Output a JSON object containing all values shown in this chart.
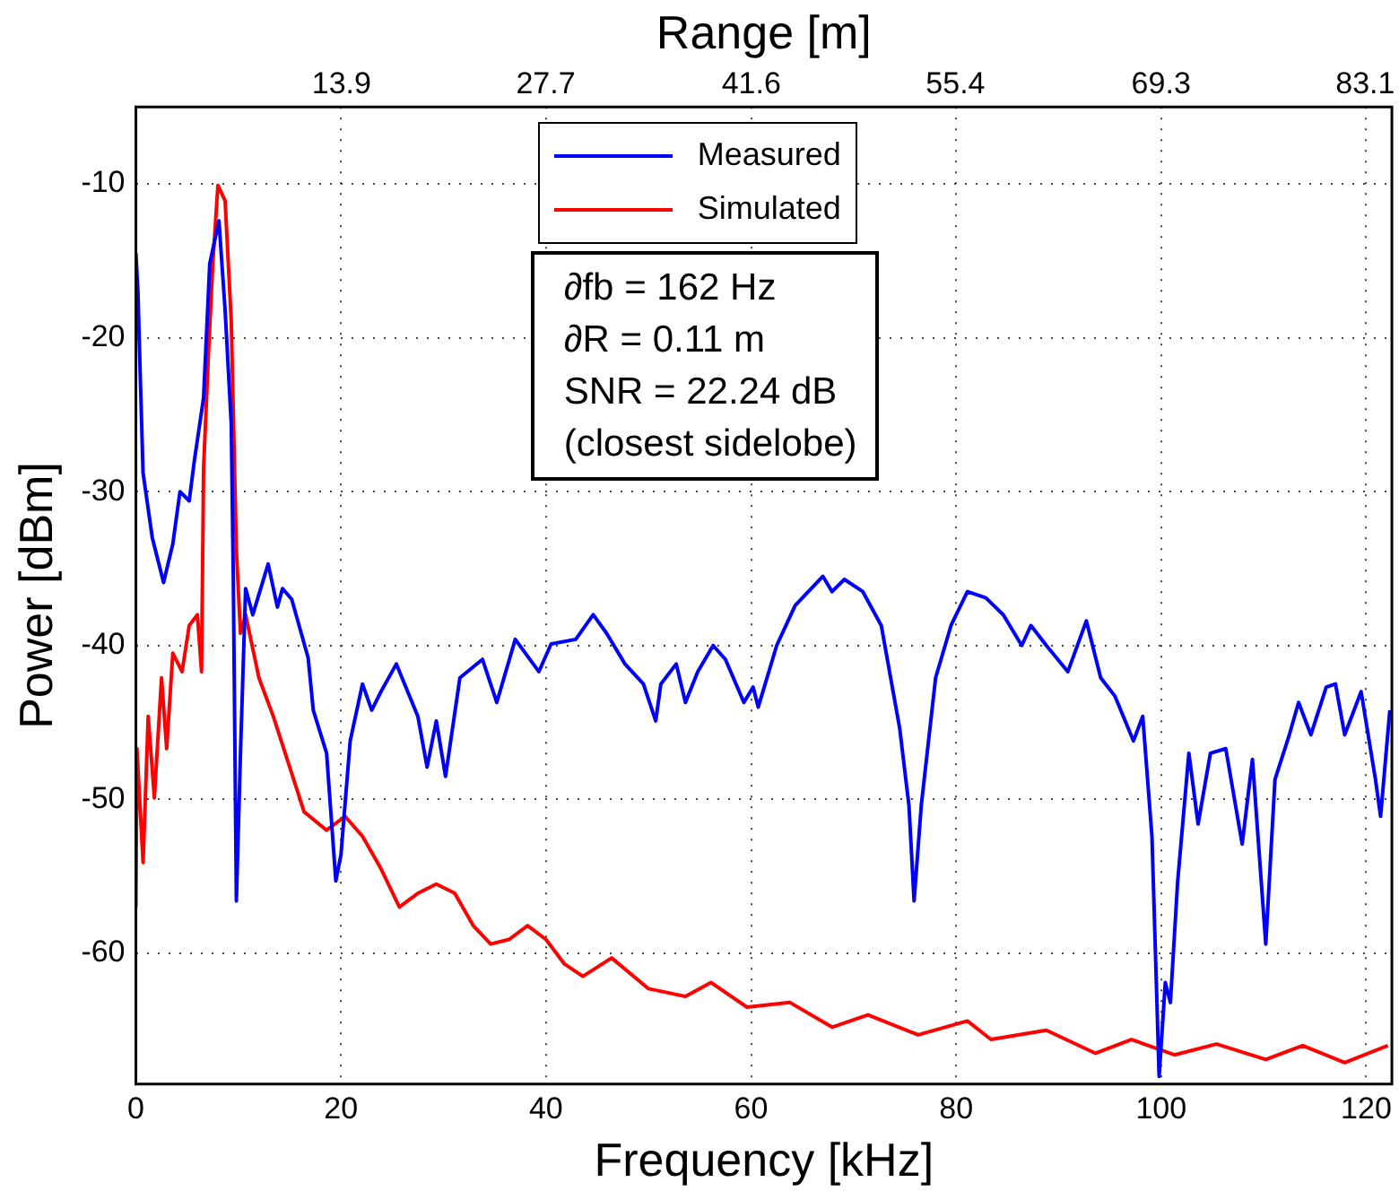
{
  "chart_data": {
    "type": "line",
    "xlabel": "Frequency [kHz]",
    "ylabel": "Power [dBm]",
    "x2label": "Range [m]",
    "xlim": [
      0,
      122.5
    ],
    "xticks": [
      0,
      20,
      40,
      60,
      80,
      100,
      120
    ],
    "x2lim": [
      0,
      84.9
    ],
    "x2ticks": [
      13.9,
      27.7,
      41.6,
      55.4,
      69.3,
      83.1
    ],
    "ylim": [
      -68.5,
      -5
    ],
    "yticks": [
      -60,
      -50,
      -40,
      -30,
      -20,
      -10
    ],
    "grid": true,
    "legend": "top",
    "line_style": "solid",
    "marker": "none",
    "annotations": [
      "∂fb = 162 Hz",
      "∂R = 0.11 m",
      "SNR = 22.24 dB",
      "(closest sidelobe)"
    ],
    "series": [
      {
        "name": "Measured",
        "color": "#0000ff",
        "x": [
          0,
          0.2,
          0.4,
          0.7,
          1.6,
          2.7,
          3.6,
          4.3,
          5.2,
          5.7,
          6.6,
          7.2,
          8.1,
          8.7,
          9.3,
          9.5,
          9.8,
          10.2,
          10.7,
          11.4,
          12.9,
          13.8,
          14.3,
          15.2,
          16.8,
          17.3,
          18.6,
          19.5,
          20,
          20.9,
          22.1,
          23,
          23.9,
          25.4,
          27.5,
          28.4,
          29.3,
          30.2,
          31.6,
          33.8,
          35.2,
          37,
          39.3,
          40.5,
          42.9,
          44.6,
          45.9,
          47.7,
          49.5,
          50.7,
          51.2,
          52.7,
          53.6,
          54.8,
          56.3,
          57.5,
          59.3,
          60.2,
          60.7,
          62.5,
          64.3,
          67,
          67.9,
          69.1,
          70.9,
          72.7,
          74.5,
          75.4,
          75.9,
          76.6,
          78,
          79.5,
          81.1,
          82.9,
          84.6,
          86.4,
          87.3,
          88.8,
          90.9,
          92.7,
          94.1,
          95.5,
          97.3,
          98.2,
          99.1,
          99.8,
          100.4,
          100.9,
          101.6,
          102.7,
          103.6,
          104.8,
          106.3,
          107.9,
          108.9,
          110.2,
          111.1,
          112.5,
          113.4,
          114.6,
          116.1,
          117,
          117.9,
          119.5,
          120.9,
          121.4,
          122.3
        ],
        "values": [
          -14.5,
          -17,
          -21.9,
          -28.8,
          -33,
          -35.9,
          -33.4,
          -30,
          -30.6,
          -28,
          -23.9,
          -15.2,
          -12.4,
          -18.2,
          -25.6,
          -35.5,
          -56.6,
          -47,
          -36.3,
          -38,
          -34.7,
          -37.5,
          -36.3,
          -37,
          -40.8,
          -44.2,
          -47,
          -55.3,
          -53.6,
          -46.2,
          -42.5,
          -44.2,
          -43,
          -41.2,
          -44.6,
          -47.9,
          -44.9,
          -48.5,
          -42.1,
          -40.9,
          -43.7,
          -39.6,
          -41.7,
          -39.9,
          -39.6,
          -38,
          -39.2,
          -41.2,
          -42.5,
          -44.9,
          -42.5,
          -41.2,
          -43.7,
          -41.7,
          -40,
          -40.9,
          -43.7,
          -42.7,
          -44,
          -40,
          -37.4,
          -35.5,
          -36.5,
          -35.7,
          -36.5,
          -38.7,
          -45.4,
          -50.4,
          -56.6,
          -50.4,
          -42.1,
          -38.7,
          -36.5,
          -36.9,
          -38,
          -40,
          -38.7,
          -40,
          -41.7,
          -38.4,
          -42.1,
          -43.3,
          -46.2,
          -44.6,
          -52.4,
          -68,
          -61.9,
          -63.2,
          -55.4,
          -47,
          -51.6,
          -47,
          -46.7,
          -52.9,
          -47.4,
          -59.4,
          -48.7,
          -45.8,
          -43.7,
          -45.8,
          -42.7,
          -42.5,
          -45.8,
          -43,
          -48.7,
          -51.1,
          -44.2
        ]
      },
      {
        "name": "Simulated",
        "color": "#ff0000",
        "x": [
          0,
          0.1,
          0.7,
          1.2,
          1.8,
          2.5,
          3,
          3.6,
          4.5,
          5.2,
          6,
          6.4,
          6.6,
          7.1,
          7.5,
          8,
          8.7,
          9.3,
          9.8,
          10.2,
          10.7,
          12,
          13.4,
          15,
          16.4,
          18.6,
          20.4,
          22.1,
          23.9,
          25.7,
          27.5,
          29.3,
          31.1,
          32.9,
          34.6,
          36.4,
          38.2,
          40,
          41.8,
          43.6,
          46.4,
          50,
          53.6,
          56.1,
          59.6,
          63.8,
          67.9,
          71.4,
          76.3,
          81.1,
          83.4,
          88.8,
          93.6,
          97.1,
          101.3,
          105.4,
          110.2,
          113.8,
          117.9,
          122.1
        ],
        "values": [
          -57,
          -46.7,
          -54.1,
          -44.6,
          -49.9,
          -42.1,
          -46.7,
          -40.5,
          -41.7,
          -38.7,
          -38,
          -41.7,
          -28.5,
          -20.7,
          -15.2,
          -10.1,
          -11.1,
          -18.9,
          -33.8,
          -39.2,
          -38,
          -42.1,
          -44.6,
          -47.9,
          -50.8,
          -52,
          -51.1,
          -52.4,
          -54.5,
          -57,
          -56.1,
          -55.5,
          -56.1,
          -58.2,
          -59.4,
          -59.1,
          -58.2,
          -59.1,
          -60.7,
          -61.5,
          -60.3,
          -62.3,
          -62.8,
          -61.9,
          -63.5,
          -63.2,
          -64.8,
          -64,
          -65.3,
          -64.4,
          -65.6,
          -65,
          -66.5,
          -65.6,
          -66.6,
          -65.9,
          -66.9,
          -66,
          -67.1,
          -66
        ]
      }
    ]
  }
}
